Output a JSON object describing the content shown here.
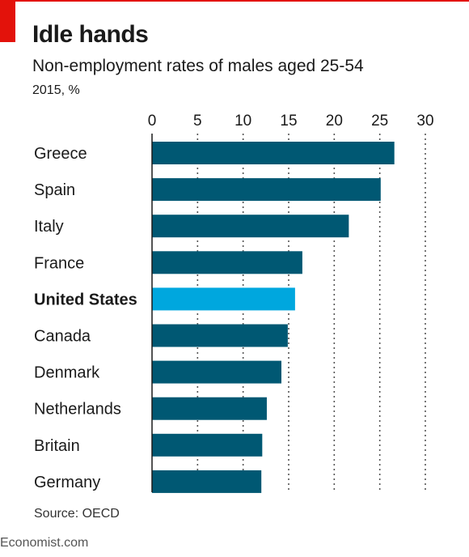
{
  "header": {
    "title": "Idle hands",
    "subtitle": "Non-employment rates of males aged 25-54",
    "unit": "2015, %"
  },
  "footer": {
    "source": "Source: OECD",
    "brand": "Economist.com"
  },
  "colors": {
    "bar": "#005873",
    "highlight": "#00a7de",
    "accent": "#e3120b"
  },
  "chart_data": {
    "type": "bar",
    "orientation": "horizontal",
    "categories": [
      "Greece",
      "Spain",
      "Italy",
      "France",
      "United States",
      "Canada",
      "Denmark",
      "Netherlands",
      "Britain",
      "Germany"
    ],
    "values": [
      26.6,
      25.1,
      21.6,
      16.5,
      15.7,
      14.9,
      14.2,
      12.6,
      12.1,
      12.0
    ],
    "highlight": "United States",
    "xlim": [
      0,
      30
    ],
    "xticks": [
      0,
      5,
      10,
      15,
      20,
      25,
      30
    ],
    "grid": true,
    "title": "Idle hands",
    "xlabel": "",
    "ylabel": ""
  }
}
